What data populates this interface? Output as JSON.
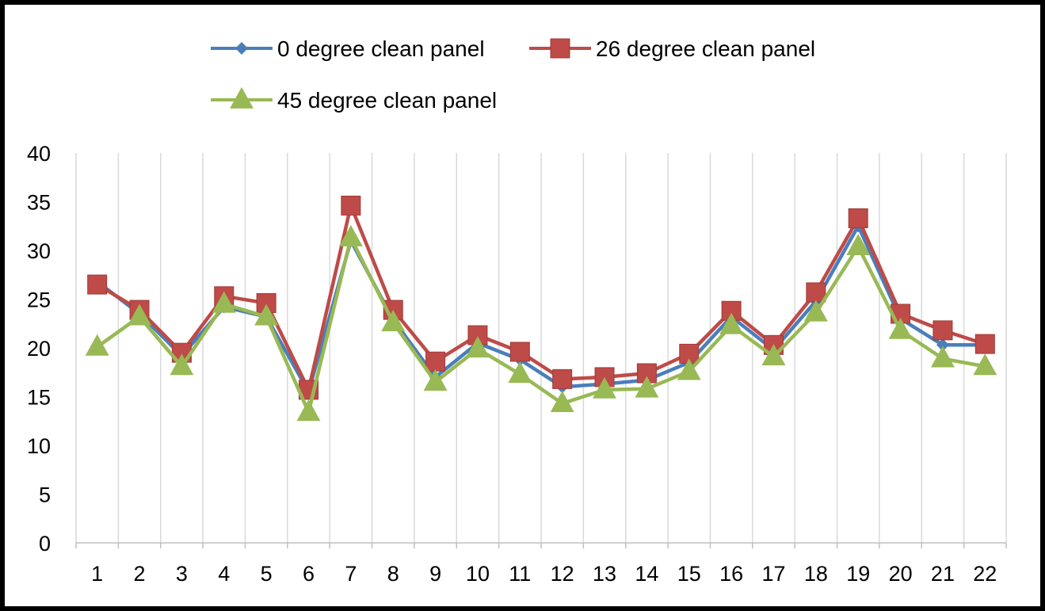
{
  "chart_data": {
    "type": "line",
    "title": "",
    "xlabel": "",
    "ylabel": "",
    "categories": [
      "1",
      "2",
      "3",
      "4",
      "5",
      "6",
      "7",
      "8",
      "9",
      "10",
      "11",
      "12",
      "13",
      "14",
      "15",
      "16",
      "17",
      "18",
      "19",
      "20",
      "21",
      "22"
    ],
    "ylim": [
      0,
      40
    ],
    "yticks": [
      0,
      5,
      10,
      15,
      20,
      25,
      30,
      35,
      40
    ],
    "grid": "vertical",
    "legend_position": "top",
    "series": [
      {
        "name": "0 degree clean panel",
        "color": "#4a7ebb",
        "marker": "diamond",
        "values": [
          26.8,
          23.5,
          19.2,
          24.2,
          23.2,
          15.5,
          31.0,
          22.9,
          17.0,
          20.5,
          18.8,
          16.0,
          16.3,
          16.7,
          18.5,
          23.2,
          19.8,
          24.8,
          32.5,
          23.0,
          20.3,
          20.3
        ]
      },
      {
        "name": "26 degree clean panel",
        "color": "#be4b48",
        "marker": "square",
        "values": [
          26.5,
          23.9,
          19.5,
          25.3,
          24.6,
          15.7,
          34.6,
          23.9,
          18.6,
          21.3,
          19.6,
          16.8,
          17.0,
          17.4,
          19.4,
          23.8,
          20.3,
          25.7,
          33.3,
          23.5,
          21.8,
          20.4
        ]
      },
      {
        "name": "45 degree clean panel",
        "color": "#98b954",
        "marker": "triangle",
        "values": [
          20.1,
          23.2,
          18.1,
          24.5,
          23.2,
          13.4,
          31.3,
          22.6,
          16.5,
          19.9,
          17.3,
          14.3,
          15.7,
          15.8,
          17.6,
          22.3,
          19.1,
          23.6,
          30.4,
          21.8,
          18.9,
          18.1
        ]
      }
    ]
  }
}
